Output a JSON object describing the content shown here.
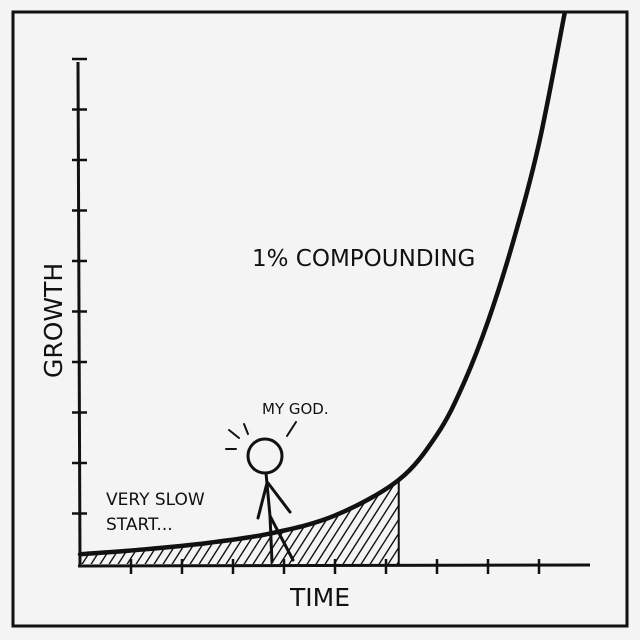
{
  "chart_data": {
    "type": "line",
    "xlabel": "TIME",
    "ylabel": "GROWTH",
    "series": [
      {
        "name": "1% COMPOUNDING",
        "values": []
      }
    ],
    "curve": {
      "growth_rate_label": "1%",
      "x": [
        0,
        5,
        10,
        15,
        20,
        25,
        28,
        30,
        32,
        34,
        36,
        38
      ],
      "y": [
        0.3,
        0.45,
        0.65,
        0.95,
        1.5,
        2.6,
        4.0,
        5.5,
        7.5,
        10.0,
        13.0,
        17.0
      ],
      "shaded_until_x": 25
    },
    "xlim": [
      0,
      40
    ],
    "ylim": [
      0,
      17
    ],
    "x_ticks": 11,
    "y_ticks": 10,
    "grid": false,
    "legend": "none"
  },
  "annotations": {
    "curve_label": "1% COMPOUNDING",
    "start_label_line1": "VERY SLOW",
    "start_label_line2": "START...",
    "speech": "MY GOD."
  }
}
